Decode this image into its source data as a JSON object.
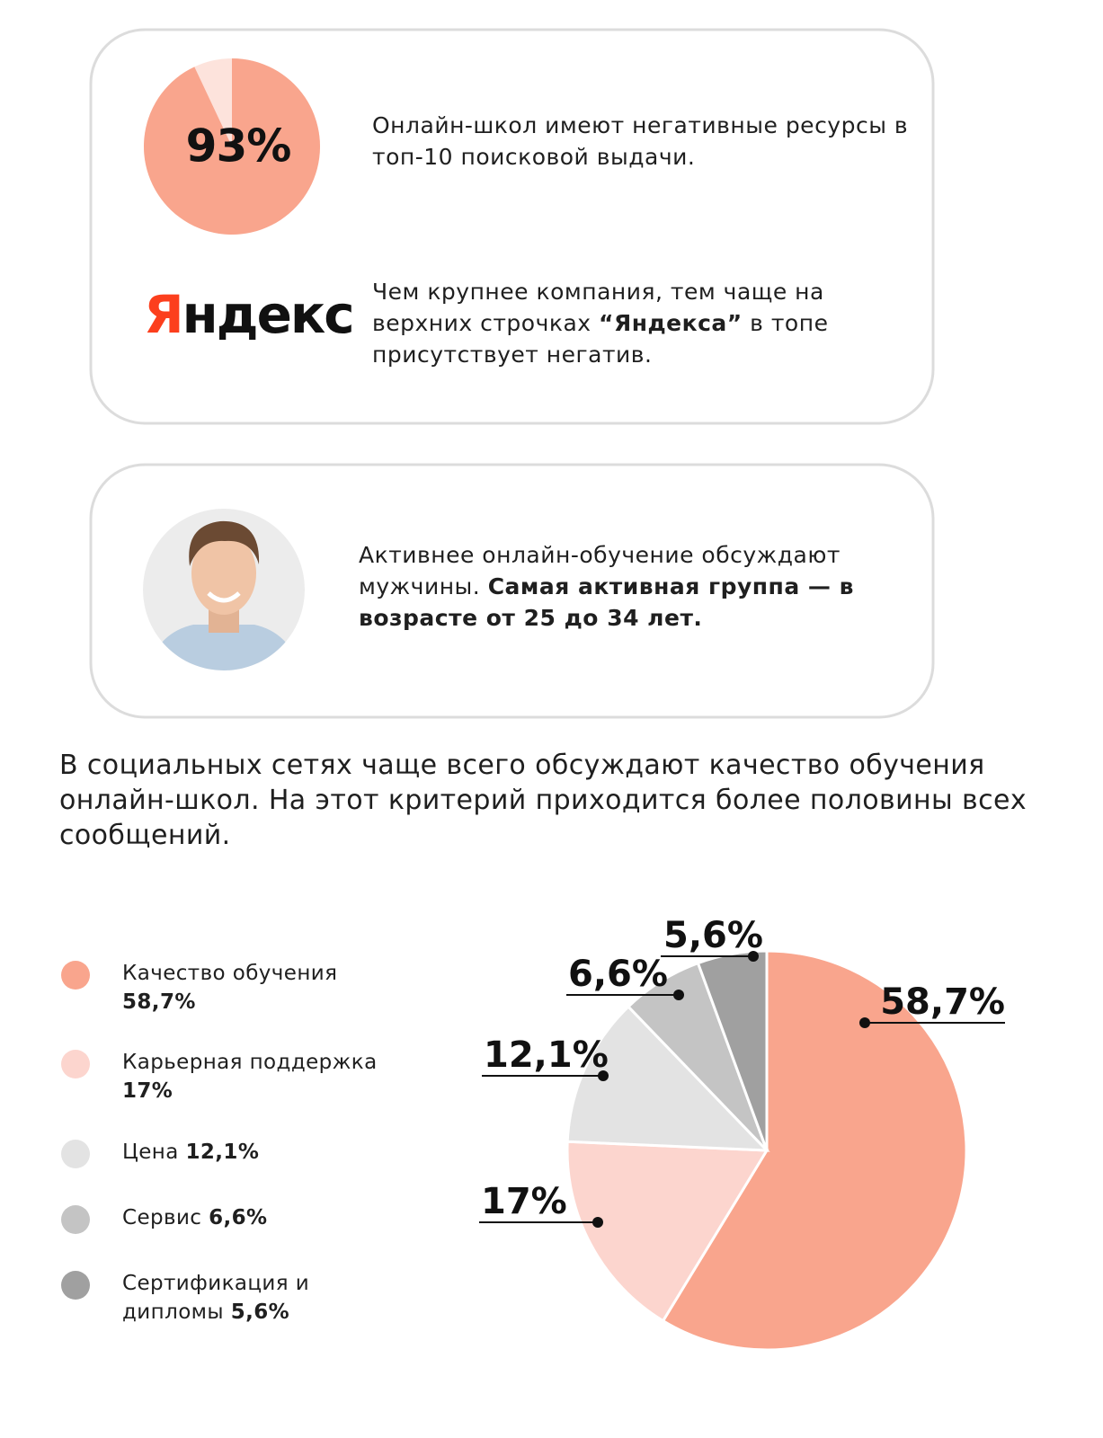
{
  "card1": {
    "text1": "Онлайн-школ имеют негативные ресурсы в топ-10 поисковой выдачи.",
    "logo": {
      "first": "Я",
      "rest": "ндекс"
    },
    "text2": {
      "before": "Чем крупнее компания, тем чаще на верхних строчках ",
      "bold": "“Яндекса”",
      "after": " в топе присутствует негатив."
    }
  },
  "card2": {
    "text": {
      "before": "Активнее онлайн-обучение обсуждают мужчины. ",
      "bold": "Самая активная группа — в возрасте от 25 до 34 лет."
    }
  },
  "paragraph": "В социальных сетях чаще всего обсуждают качество обучения онлайн-школ. На этот критерий приходится более половины всех сообщений.",
  "chart_data": [
    {
      "type": "pie",
      "values": [
        93
      ],
      "value_labels": [
        "93%"
      ],
      "colors": [
        "#f9a58d"
      ]
    },
    {
      "type": "pie",
      "categories": [
        "Качество обучения",
        "Карьерная поддержка",
        "Цена",
        "Сервис",
        "Сертификация и дипломы"
      ],
      "values": [
        58.7,
        17,
        12.1,
        6.6,
        5.6
      ],
      "value_labels": [
        "58,7%",
        "17%",
        "12,1%",
        "6,6%",
        "5,6%"
      ],
      "colors": [
        "#f9a58d",
        "#fcd5ce",
        "#e3e3e3",
        "#c4c4c4",
        "#a0a0a0"
      ],
      "legend": "left"
    }
  ]
}
